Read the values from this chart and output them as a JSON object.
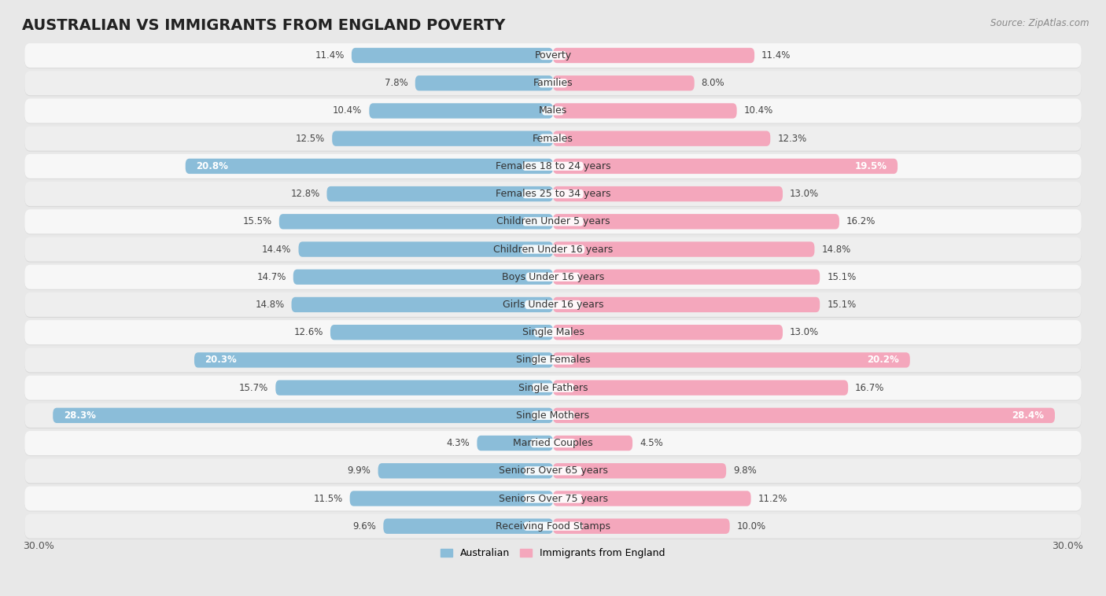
{
  "title": "AUSTRALIAN VS IMMIGRANTS FROM ENGLAND POVERTY",
  "source": "Source: ZipAtlas.com",
  "categories": [
    "Poverty",
    "Families",
    "Males",
    "Females",
    "Females 18 to 24 years",
    "Females 25 to 34 years",
    "Children Under 5 years",
    "Children Under 16 years",
    "Boys Under 16 years",
    "Girls Under 16 years",
    "Single Males",
    "Single Females",
    "Single Fathers",
    "Single Mothers",
    "Married Couples",
    "Seniors Over 65 years",
    "Seniors Over 75 years",
    "Receiving Food Stamps"
  ],
  "australian": [
    11.4,
    7.8,
    10.4,
    12.5,
    20.8,
    12.8,
    15.5,
    14.4,
    14.7,
    14.8,
    12.6,
    20.3,
    15.7,
    28.3,
    4.3,
    9.9,
    11.5,
    9.6
  ],
  "immigrants": [
    11.4,
    8.0,
    10.4,
    12.3,
    19.5,
    13.0,
    16.2,
    14.8,
    15.1,
    15.1,
    13.0,
    20.2,
    16.7,
    28.4,
    4.5,
    9.8,
    11.2,
    10.0
  ],
  "australian_color": "#8bbdd9",
  "immigrants_color": "#f4a7bc",
  "australian_label": "Australian",
  "immigrants_label": "Immigrants from England",
  "xlim": 30.0,
  "background_color": "#e8e8e8",
  "row_light_color": "#f0f0f0",
  "row_dark_color": "#e0e0e0",
  "bar_height": 0.55,
  "title_fontsize": 14,
  "label_fontsize": 9,
  "value_fontsize": 8.5,
  "legend_fontsize": 9,
  "axis_label_fontsize": 9
}
